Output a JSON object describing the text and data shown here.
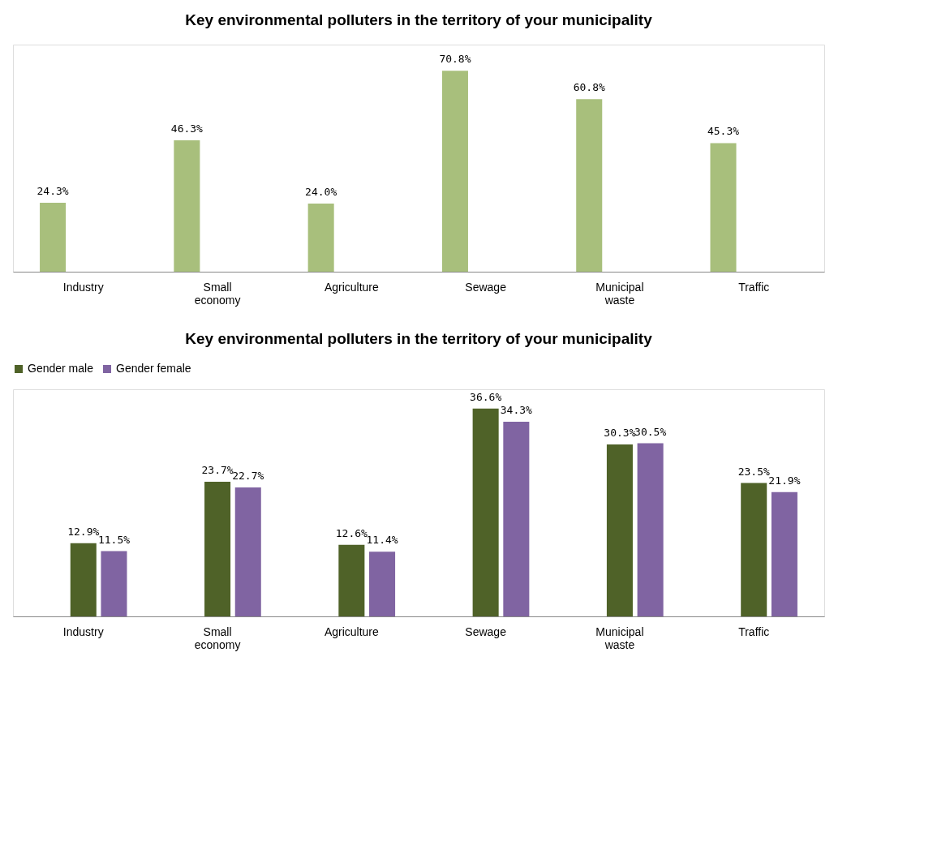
{
  "chart_data": [
    {
      "type": "bar",
      "title": "Key environmental polluters in the territory of your municipality",
      "categories": [
        "Industry",
        "Small economy",
        "Agriculture",
        "Sewage",
        "Municipal waste",
        "Traffic"
      ],
      "series": [
        {
          "color": "#a8bf7c",
          "values": [
            24.3,
            46.3,
            24.0,
            70.8,
            60.8,
            45.3
          ],
          "value_labels": [
            "24.3%",
            "46.3%",
            "24.0%",
            "70.8%",
            "60.8%",
            "45.3%"
          ]
        }
      ],
      "grid": false,
      "legend": false,
      "tick_labels": "x"
    },
    {
      "type": "bar",
      "title": "Key environmental polluters in the territory of your municipality",
      "categories": [
        "Industry",
        "Small economy",
        "Agriculture",
        "Sewage",
        "Municipal waste",
        "Traffic"
      ],
      "series": [
        {
          "name": "Gender male",
          "color": "#4f6228",
          "values": [
            12.9,
            23.7,
            12.6,
            36.6,
            30.3,
            23.5
          ],
          "value_labels": [
            "12.9%",
            "23.7%",
            "12.6%",
            "36.6%",
            "30.3%",
            "23.5%"
          ]
        },
        {
          "name": "Gender female",
          "color": "#8064a2",
          "values": [
            11.5,
            22.7,
            11.4,
            34.3,
            30.5,
            21.9
          ],
          "value_labels": [
            "11.5%",
            "22.7%",
            "11.4%",
            "34.3%",
            "30.5%",
            "21.9%"
          ]
        }
      ],
      "grid": false,
      "legend": "top",
      "tick_labels": "x"
    }
  ]
}
